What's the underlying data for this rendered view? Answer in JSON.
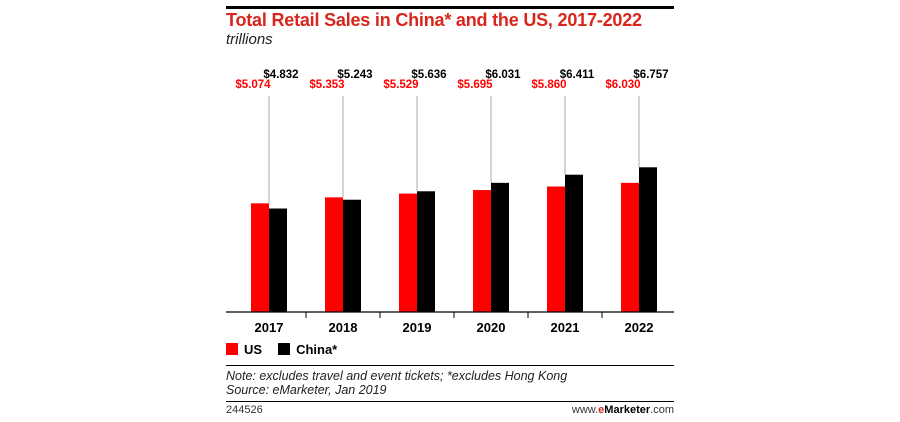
{
  "header": {
    "title": "Total Retail Sales in China* and the US, 2017-2022",
    "subtitle": "trillions"
  },
  "chart_data": {
    "type": "bar",
    "title": "Total Retail Sales in China* and the US, 2017-2022",
    "subtitle": "trillions",
    "categories": [
      "2017",
      "2018",
      "2019",
      "2020",
      "2021",
      "2022"
    ],
    "series": [
      {
        "name": "US",
        "color": "#ff0000",
        "values": [
          5.074,
          5.353,
          5.529,
          5.695,
          5.86,
          6.03
        ],
        "labels": [
          "$5.074",
          "$5.353",
          "$5.529",
          "$5.695",
          "$5.860",
          "$6.030"
        ]
      },
      {
        "name": "China*",
        "color": "#000000",
        "values": [
          4.832,
          5.243,
          5.636,
          6.031,
          6.411,
          6.757
        ],
        "labels": [
          "$4.832",
          "$5.243",
          "$5.636",
          "$6.031",
          "$6.411",
          "$6.757"
        ]
      }
    ],
    "ylim": [
      0,
      12
    ],
    "grid": false,
    "legend": "bottom-left"
  },
  "footer": {
    "note": "Note: excludes travel and event tickets; *excludes Hong Kong",
    "source": "Source: eMarketer, Jan 2019",
    "chart_id": "244526",
    "brand_prefix": "www.",
    "brand_mark": "e",
    "brand_name": "Marketer",
    "brand_suffix": ".com"
  }
}
